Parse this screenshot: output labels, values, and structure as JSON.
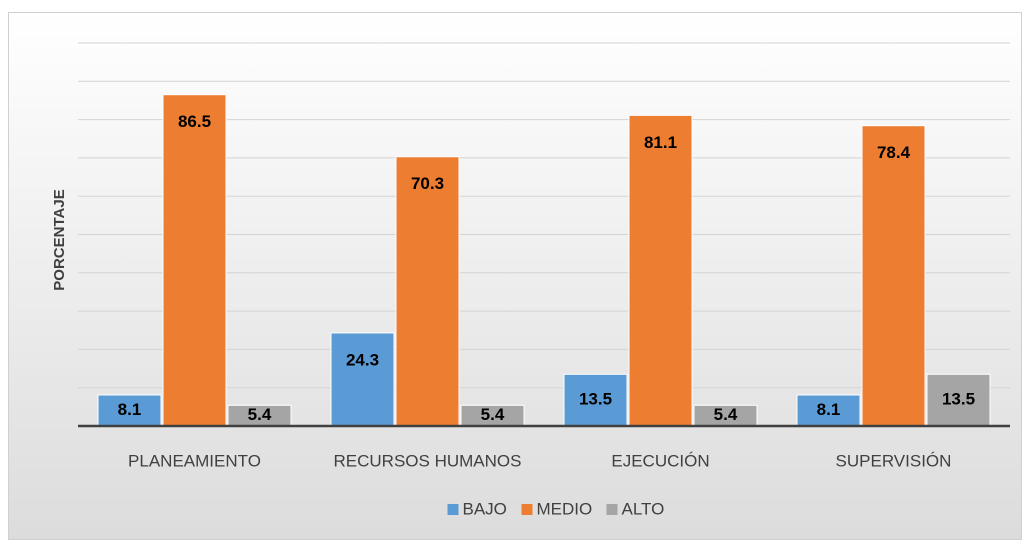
{
  "chart_data": {
    "type": "bar",
    "ylabel": "PORCENTAJE",
    "categories": [
      "PLANEAMIENTO",
      "RECURSOS HUMANOS",
      "EJECUCIÓN",
      "SUPERVISIÓN"
    ],
    "series": [
      {
        "name": "BAJO",
        "color": "#5b9bd5",
        "values": [
          8.1,
          24.3,
          13.5,
          8.1
        ]
      },
      {
        "name": "MEDIO",
        "color": "#ed7d31",
        "values": [
          86.5,
          70.3,
          81.1,
          78.4
        ]
      },
      {
        "name": "ALTO",
        "color": "#a5a5a5",
        "values": [
          5.4,
          5.4,
          5.4,
          13.5
        ]
      }
    ],
    "ylim": [
      0,
      100
    ],
    "yticks": [
      0,
      10,
      20,
      30,
      40,
      50,
      60,
      70,
      80,
      90,
      100
    ],
    "grid": true,
    "legend": "bottom"
  }
}
